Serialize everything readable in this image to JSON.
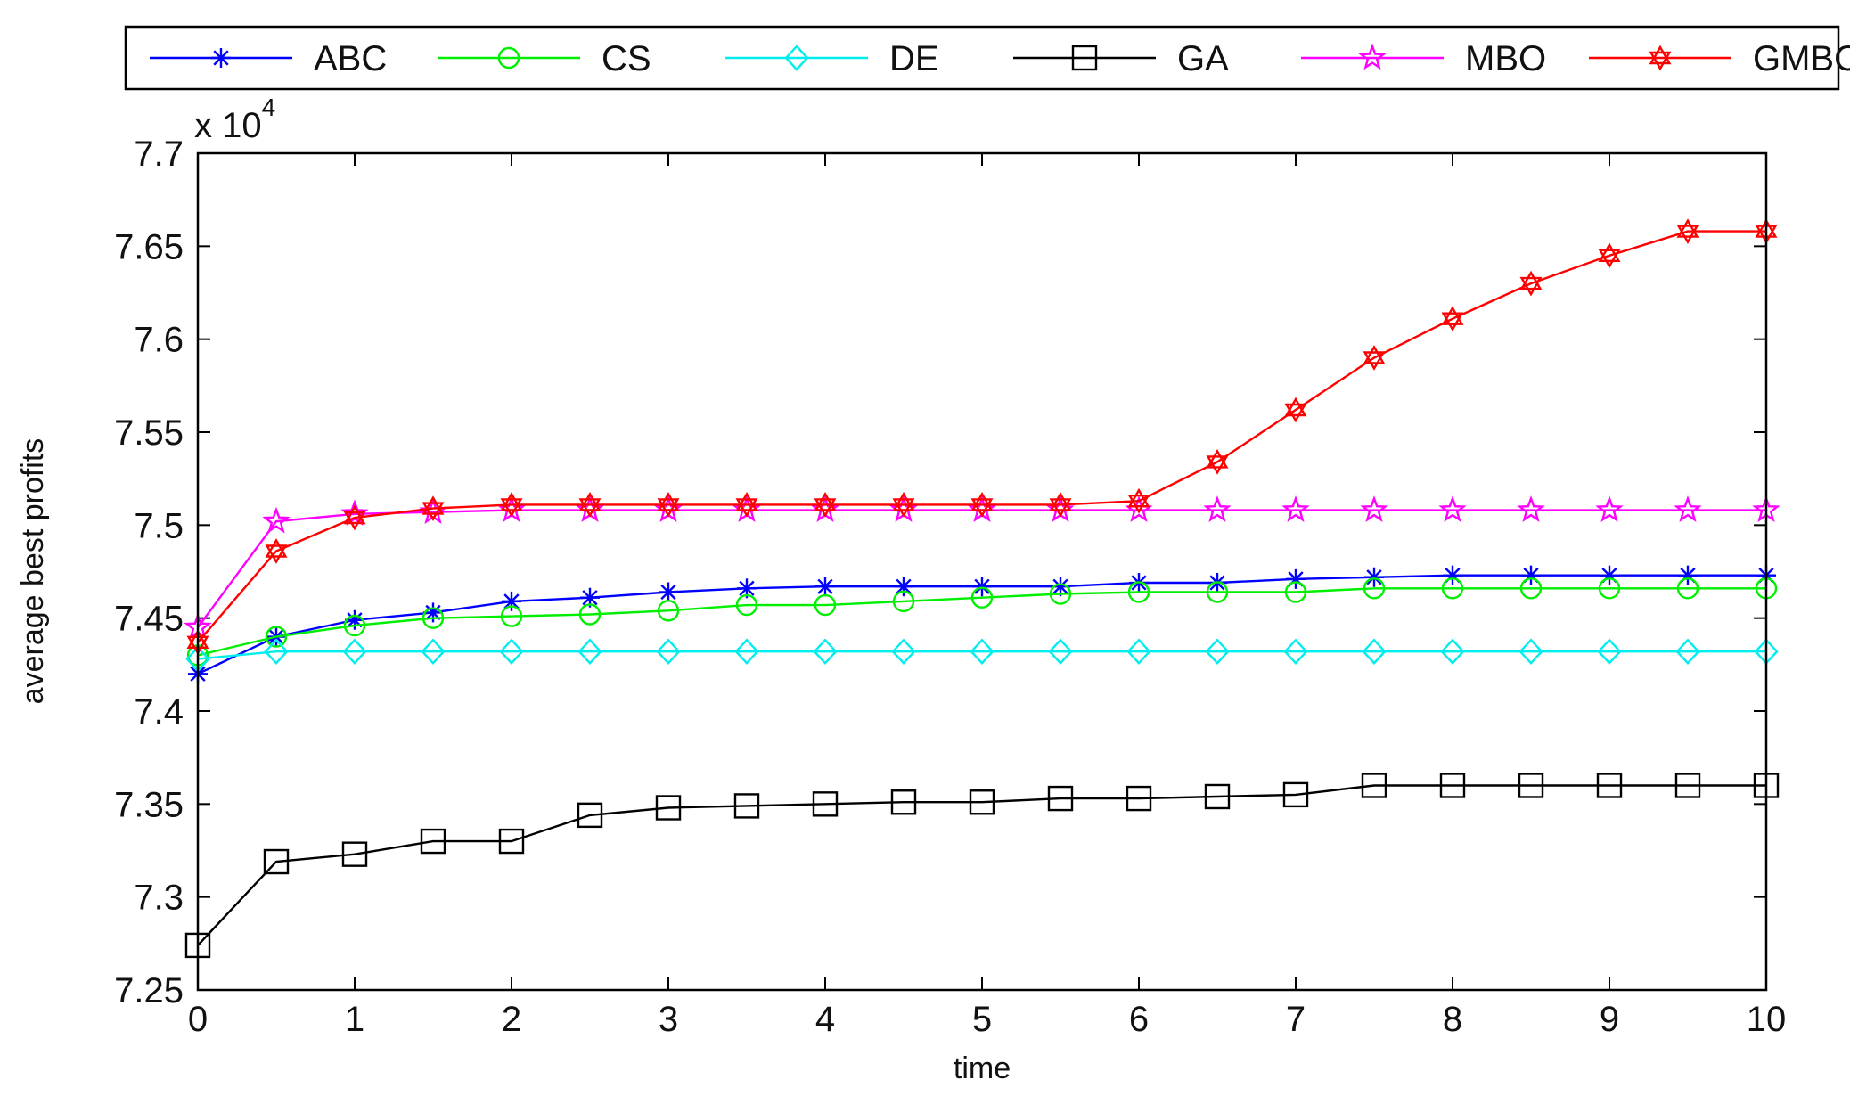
{
  "chart_data": {
    "type": "line",
    "title": "",
    "xlabel": "time",
    "ylabel": "average best profits",
    "exponent_label": "x 10",
    "exponent_power": "4",
    "xlim": [
      0,
      10
    ],
    "ylim": [
      7.25,
      7.7
    ],
    "x_ticks": [
      "0",
      "1",
      "2",
      "3",
      "4",
      "5",
      "6",
      "7",
      "8",
      "9",
      "10"
    ],
    "y_ticks": [
      "7.25",
      "7.3",
      "7.35",
      "7.4",
      "7.45",
      "7.5",
      "7.55",
      "7.6",
      "7.65",
      "7.7"
    ],
    "x": [
      0,
      0.5,
      1,
      1.5,
      2,
      2.5,
      3,
      3.5,
      4,
      4.5,
      5,
      5.5,
      6,
      6.5,
      7,
      7.5,
      8,
      8.5,
      9,
      9.5,
      10
    ],
    "legend_position": "top (outside plot)",
    "series": [
      {
        "name": "ABC",
        "color": "#0000ff",
        "marker": "asterisk",
        "values": [
          7.42,
          7.44,
          7.449,
          7.453,
          7.459,
          7.461,
          7.464,
          7.466,
          7.467,
          7.467,
          7.467,
          7.467,
          7.469,
          7.469,
          7.471,
          7.472,
          7.473,
          7.473,
          7.473,
          7.473,
          7.473
        ]
      },
      {
        "name": "CS",
        "color": "#00ee00",
        "marker": "circle",
        "values": [
          7.43,
          7.44,
          7.446,
          7.45,
          7.451,
          7.452,
          7.454,
          7.457,
          7.457,
          7.459,
          7.461,
          7.463,
          7.464,
          7.464,
          7.464,
          7.466,
          7.466,
          7.466,
          7.466,
          7.466,
          7.466
        ]
      },
      {
        "name": "DE",
        "color": "#00eeee",
        "marker": "diamond",
        "values": [
          7.428,
          7.432,
          7.432,
          7.432,
          7.432,
          7.432,
          7.432,
          7.432,
          7.432,
          7.432,
          7.432,
          7.432,
          7.432,
          7.432,
          7.432,
          7.432,
          7.432,
          7.432,
          7.432,
          7.432,
          7.432
        ]
      },
      {
        "name": "GA",
        "color": "#000000",
        "marker": "square",
        "values": [
          7.274,
          7.319,
          7.323,
          7.33,
          7.33,
          7.344,
          7.348,
          7.349,
          7.35,
          7.351,
          7.351,
          7.353,
          7.353,
          7.354,
          7.355,
          7.36,
          7.36,
          7.36,
          7.36,
          7.36,
          7.36
        ]
      },
      {
        "name": "MBO",
        "color": "#ff00ff",
        "marker": "star",
        "values": [
          7.445,
          7.502,
          7.506,
          7.507,
          7.508,
          7.508,
          7.508,
          7.508,
          7.508,
          7.508,
          7.508,
          7.508,
          7.508,
          7.508,
          7.508,
          7.508,
          7.508,
          7.508,
          7.508,
          7.508,
          7.508
        ]
      },
      {
        "name": "GMBO",
        "color": "#ff0000",
        "marker": "hexagram",
        "values": [
          7.437,
          7.486,
          7.504,
          7.509,
          7.511,
          7.511,
          7.511,
          7.511,
          7.511,
          7.511,
          7.511,
          7.511,
          7.513,
          7.534,
          7.562,
          7.59,
          7.611,
          7.63,
          7.645,
          7.658,
          7.658
        ]
      }
    ]
  }
}
